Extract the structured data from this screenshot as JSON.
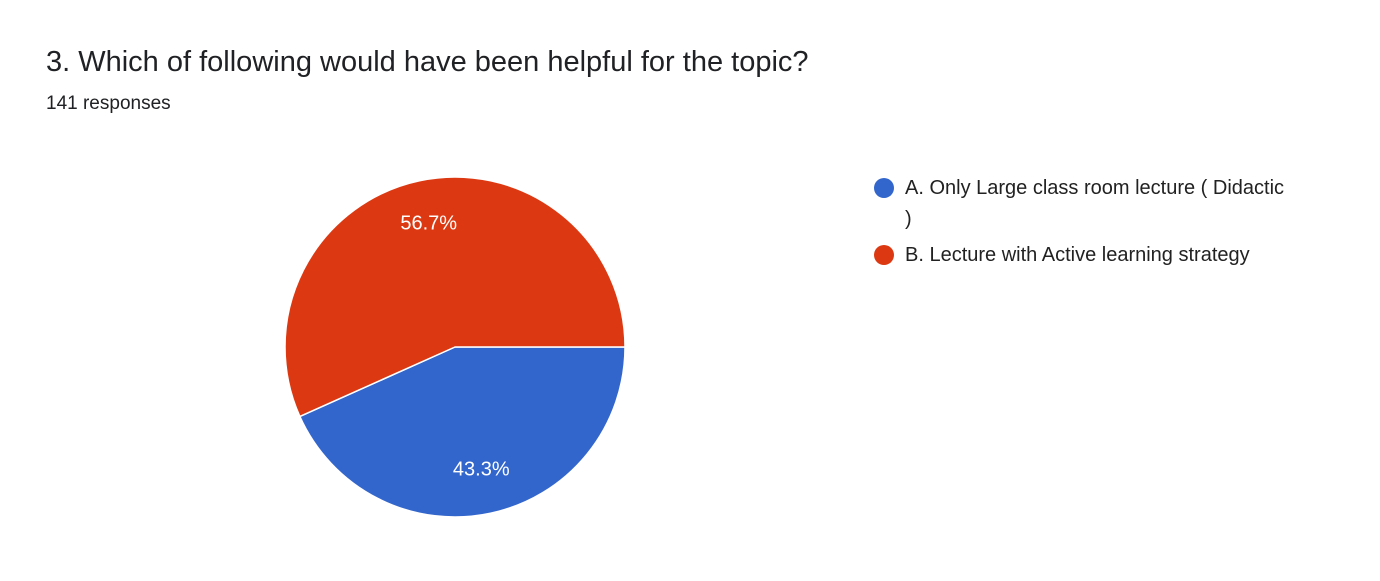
{
  "chart_data": {
    "type": "pie",
    "title": "3. Which of following would have been helpful for the topic?",
    "subtitle": "141 responses",
    "categories": [
      "A. Only Large class room lecture ( Didactic )",
      "B. Lecture with Active learning strategy"
    ],
    "values": [
      43.3,
      56.7
    ],
    "value_labels": [
      "43.3%",
      "56.7%"
    ],
    "colors": [
      "#3366cc",
      "#dc3912"
    ]
  }
}
